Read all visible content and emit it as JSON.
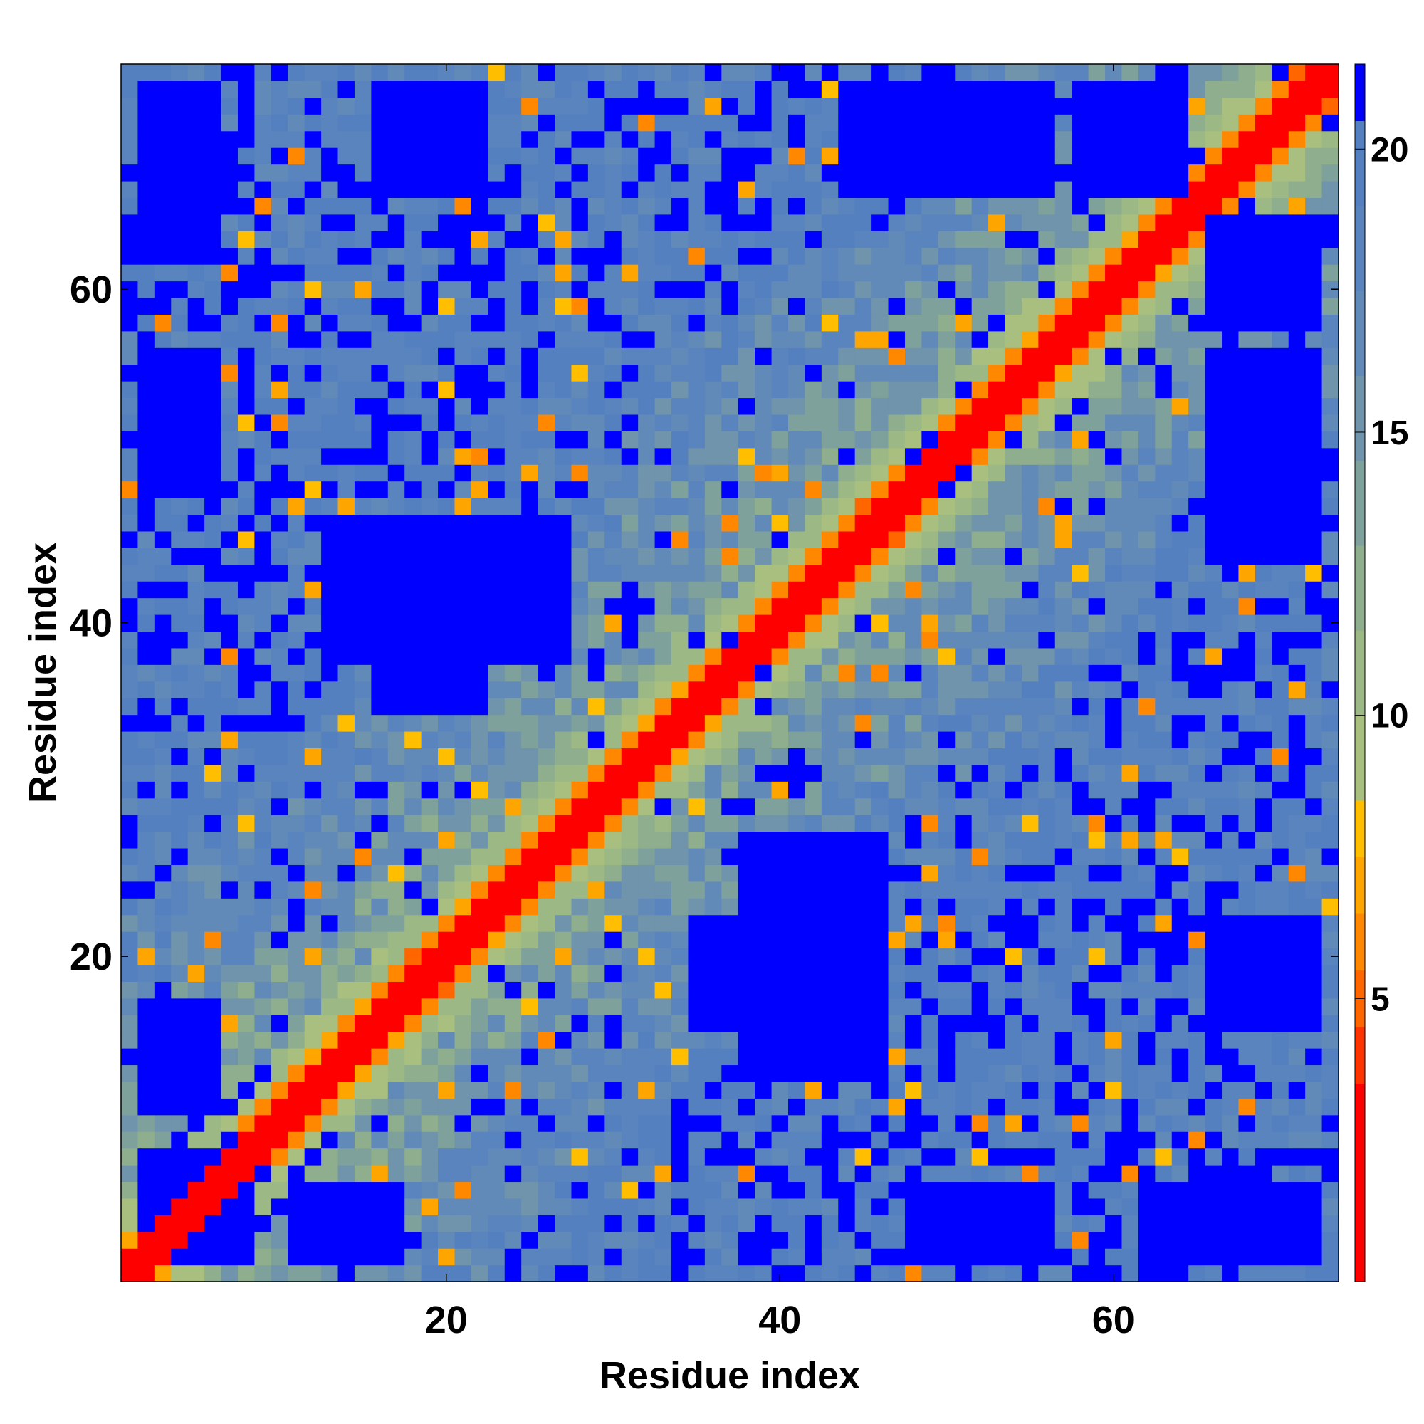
{
  "chart_data": {
    "type": "heatmap",
    "title": "",
    "xlabel": "Residue index",
    "ylabel": "Residue index",
    "xlim": [
      1,
      73
    ],
    "ylim": [
      1,
      73
    ],
    "n_residues": 73,
    "x_ticks": [
      20,
      40,
      60
    ],
    "y_ticks": [
      20,
      40,
      60
    ],
    "x_tick_labels": [
      "20",
      "40",
      "60"
    ],
    "y_tick_labels": [
      "20",
      "40",
      "60"
    ],
    "colorbar": {
      "range": [
        0,
        21.5
      ],
      "ticks": [
        5,
        10,
        15,
        20
      ],
      "tick_labels": [
        "5",
        "10",
        "15",
        "20"
      ],
      "bins": [
        {
          "max": 3.5,
          "color": "#ff0000"
        },
        {
          "max": 4.5,
          "color": "#ff3300"
        },
        {
          "max": 5.5,
          "color": "#ff6600"
        },
        {
          "max": 6.5,
          "color": "#ff8800"
        },
        {
          "max": 7.5,
          "color": "#ffa500"
        },
        {
          "max": 8.5,
          "color": "#ffbf00"
        },
        {
          "max": 10.0,
          "color": "#a8bf7f"
        },
        {
          "max": 11.5,
          "color": "#9cb885"
        },
        {
          "max": 13.0,
          "color": "#8fae8e"
        },
        {
          "max": 14.5,
          "color": "#7fa19c"
        },
        {
          "max": 16.0,
          "color": "#6f94ab"
        },
        {
          "max": 17.5,
          "color": "#628ab8"
        },
        {
          "max": 19.0,
          "color": "#5a84bd"
        },
        {
          "max": 20.5,
          "color": "#5580c0"
        },
        {
          "max": 21.5,
          "color": "#0000ff"
        }
      ]
    },
    "blue_blocks": [
      [
        16,
        22,
        35,
        46
      ],
      [
        38,
        46,
        13,
        27
      ],
      [
        2,
        6,
        2,
        8
      ],
      [
        2,
        6,
        11,
        17
      ],
      [
        2,
        6,
        48,
        56
      ],
      [
        66,
        72,
        2,
        6
      ],
      [
        66,
        72,
        48,
        56
      ],
      [
        2,
        6,
        62,
        72
      ],
      [
        16,
        22,
        66,
        72
      ],
      [
        66,
        72,
        16,
        22
      ],
      [
        58,
        64,
        66,
        72
      ],
      [
        44,
        50,
        66,
        72
      ]
    ],
    "colors": {
      "diagonal": "#ff0000",
      "near_contact": "#ff8800",
      "background_far": "#5a84bd",
      "beyond_cutoff": "#0000ff"
    }
  }
}
